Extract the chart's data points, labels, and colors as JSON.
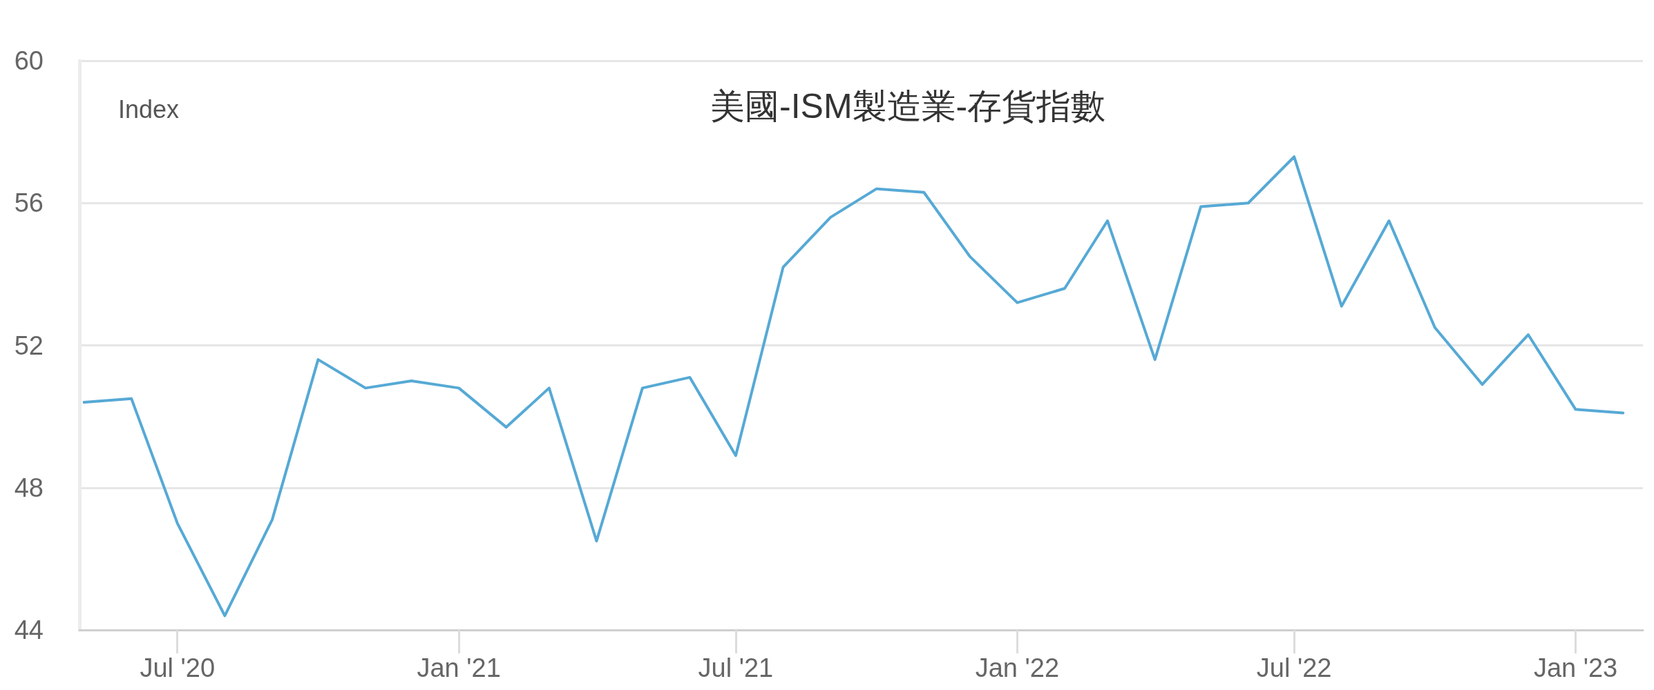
{
  "chart_data": {
    "type": "line",
    "title": "美國-ISM製造業-存貨指數",
    "ylabel": "Index",
    "x": [
      "2020-05",
      "2020-06",
      "2020-07",
      "2020-08",
      "2020-09",
      "2020-10",
      "2020-11",
      "2020-12",
      "2021-01",
      "2021-02",
      "2021-03",
      "2021-04",
      "2021-05",
      "2021-06",
      "2021-07",
      "2021-08",
      "2021-09",
      "2021-10",
      "2021-11",
      "2021-12",
      "2022-01",
      "2022-02",
      "2022-03",
      "2022-04",
      "2022-05",
      "2022-06",
      "2022-07",
      "2022-08",
      "2022-09",
      "2022-10",
      "2022-11",
      "2022-12",
      "2023-01",
      "2023-02"
    ],
    "values": [
      50.4,
      50.5,
      47.0,
      44.4,
      47.1,
      51.6,
      50.8,
      51.0,
      50.8,
      49.7,
      50.8,
      46.5,
      50.8,
      51.1,
      48.9,
      54.2,
      55.6,
      56.4,
      56.3,
      54.5,
      53.2,
      53.6,
      55.5,
      51.6,
      55.9,
      56.0,
      57.3,
      53.1,
      55.5,
      52.5,
      50.9,
      52.3,
      50.2,
      50.1
    ],
    "color": "#56a9d5",
    "xlim": [
      "2020-04-28",
      "2023-02-14"
    ],
    "xticks": [
      {
        "value": "2020-07",
        "label": "Jul '20"
      },
      {
        "value": "2021-01",
        "label": "Jan '21"
      },
      {
        "value": "2021-07",
        "label": "Jul '21"
      },
      {
        "value": "2022-01",
        "label": "Jan '22"
      },
      {
        "value": "2022-07",
        "label": "Jul '22"
      },
      {
        "value": "2023-01",
        "label": "Jan '23"
      }
    ],
    "ylim": [
      44,
      60
    ],
    "yticks": [
      44,
      48,
      52,
      56,
      60
    ],
    "grid": "y",
    "marker": "none",
    "line_style": "solid"
  }
}
